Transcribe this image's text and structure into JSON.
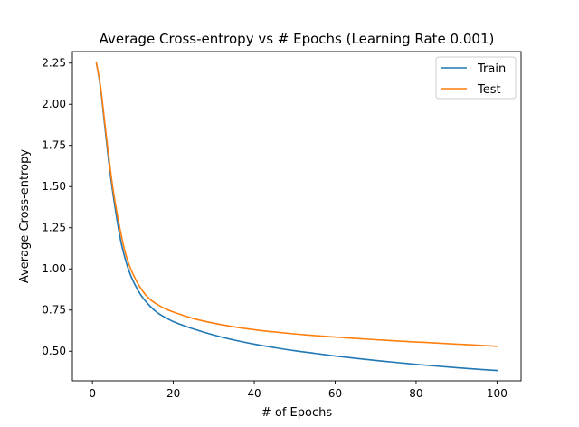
{
  "chart_data": {
    "type": "line",
    "title": "Average Cross-entropy vs # Epochs (Learning Rate 0.001)",
    "xlabel": "# of Epochs",
    "ylabel": "Average Cross-entropy",
    "xlim": [
      -4.95,
      105.95
    ],
    "ylim": [
      0.32,
      2.32
    ],
    "xticks": [
      0,
      20,
      40,
      60,
      80,
      100
    ],
    "yticks": [
      0.5,
      0.75,
      1.0,
      1.25,
      1.5,
      1.75,
      2.0,
      2.25
    ],
    "ytick_labels": [
      "0.50",
      "0.75",
      "1.00",
      "1.25",
      "1.50",
      "1.75",
      "2.00",
      "2.25"
    ],
    "grid": false,
    "legend_position": "top-right",
    "x": [
      1,
      2,
      3,
      4,
      5,
      6,
      7,
      8,
      9,
      10,
      12,
      14,
      16,
      18,
      20,
      25,
      30,
      35,
      40,
      45,
      50,
      55,
      60,
      65,
      70,
      75,
      80,
      85,
      90,
      95,
      100
    ],
    "series": [
      {
        "name": "Train",
        "color": "#1f77b4",
        "values": [
          2.25,
          2.1,
          1.88,
          1.66,
          1.47,
          1.31,
          1.17,
          1.07,
          0.99,
          0.93,
          0.84,
          0.78,
          0.735,
          0.705,
          0.68,
          0.635,
          0.598,
          0.568,
          0.543,
          0.522,
          0.503,
          0.487,
          0.471,
          0.457,
          0.444,
          0.432,
          0.42,
          0.41,
          0.4,
          0.391,
          0.383
        ]
      },
      {
        "name": "Test",
        "color": "#ff7f0e",
        "values": [
          2.25,
          2.11,
          1.9,
          1.69,
          1.5,
          1.35,
          1.22,
          1.11,
          1.03,
          0.97,
          0.88,
          0.82,
          0.785,
          0.758,
          0.738,
          0.698,
          0.67,
          0.648,
          0.631,
          0.617,
          0.605,
          0.595,
          0.586,
          0.578,
          0.57,
          0.563,
          0.556,
          0.55,
          0.543,
          0.537,
          0.53
        ]
      }
    ]
  }
}
